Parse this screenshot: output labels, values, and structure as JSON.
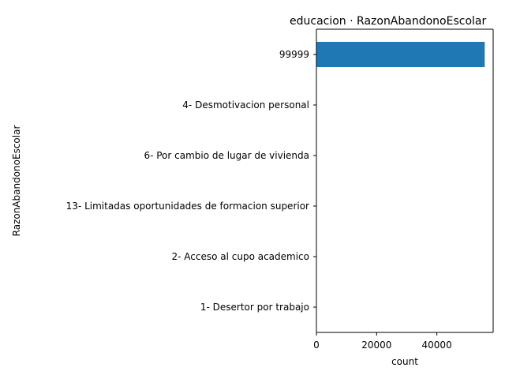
{
  "chart_data": {
    "type": "bar",
    "orientation": "horizontal",
    "title": "educacion · RazonAbandonoEscolar",
    "xlabel": "count",
    "ylabel": "RazonAbandonoEscolar",
    "categories": [
      "99999",
      "4- Desmotivacion personal",
      "6- Por cambio de lugar de vivienda",
      "13- Limitadas oportunidades de formacion superior",
      "2- Acceso al cupo academico",
      "1- Desertor por trabajo"
    ],
    "values": [
      55900,
      90,
      60,
      40,
      30,
      20
    ],
    "xlim": [
      0,
      58700
    ],
    "xticks": [
      0,
      20000,
      40000
    ],
    "xtick_labels": [
      "0",
      "20000",
      "40000"
    ],
    "bar_color": "#1f77b4",
    "grid": false,
    "legend": "none"
  }
}
